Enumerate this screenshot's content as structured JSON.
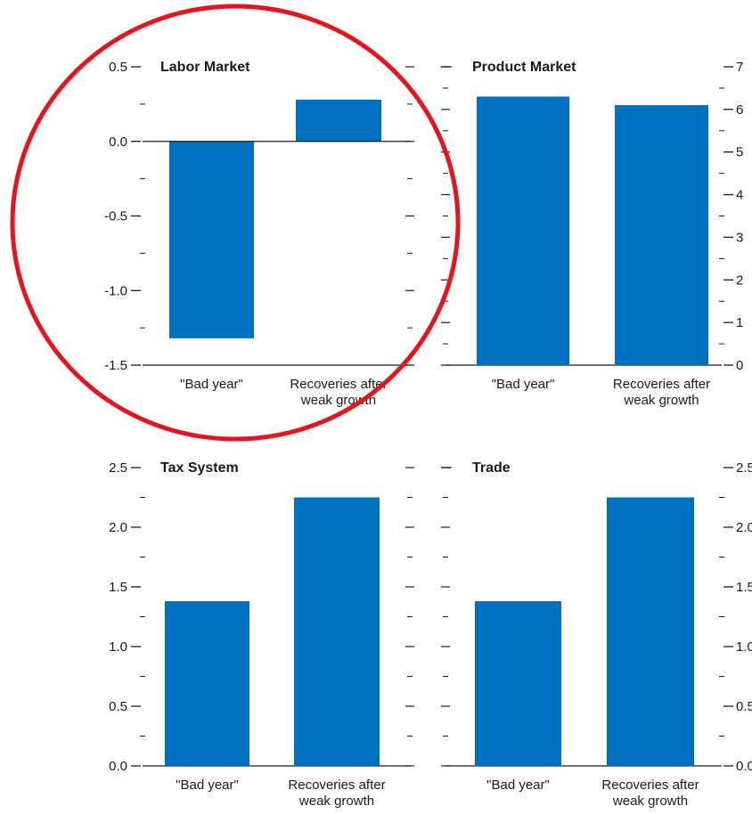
{
  "chart_data": [
    {
      "type": "bar",
      "title": "Labor Market",
      "categories": [
        "\"Bad year\"",
        "Recoveries after weak growth"
      ],
      "category_lines": [
        [
          "\"Bad year\""
        ],
        [
          "Recoveries after",
          "weak growth"
        ]
      ],
      "values": [
        -1.32,
        0.28
      ],
      "ylim": [
        -1.5,
        0.5
      ],
      "ticks": [
        -1.5,
        -1.0,
        -0.5,
        0.0,
        0.5
      ],
      "tick_labels": [
        "-1.5",
        "-1.0",
        "-0.5",
        "0.0",
        "0.5"
      ],
      "y_axis_side": "left",
      "baseline": 0
    },
    {
      "type": "bar",
      "title": "Product Market",
      "categories": [
        "\"Bad year\"",
        "Recoveries after weak growth"
      ],
      "category_lines": [
        [
          "\"Bad year\""
        ],
        [
          "Recoveries after",
          "weak growth"
        ]
      ],
      "values": [
        6.3,
        6.1
      ],
      "ylim": [
        0,
        7
      ],
      "ticks": [
        0,
        1,
        2,
        3,
        4,
        5,
        6,
        7
      ],
      "tick_labels": [
        "0",
        "1",
        "2",
        "3",
        "4",
        "5",
        "6",
        "7"
      ],
      "y_axis_side": "right",
      "baseline": 0
    },
    {
      "type": "bar",
      "title": "Tax System",
      "categories": [
        "\"Bad year\"",
        "Recoveries after weak growth"
      ],
      "category_lines": [
        [
          "\"Bad year\""
        ],
        [
          "Recoveries after",
          "weak growth"
        ]
      ],
      "values": [
        1.38,
        2.25
      ],
      "ylim": [
        0,
        2.5
      ],
      "ticks": [
        0.0,
        0.5,
        1.0,
        1.5,
        2.0,
        2.5
      ],
      "tick_labels": [
        "0.0",
        "0.5",
        "1.0",
        "1.5",
        "2.0",
        "2.5"
      ],
      "y_axis_side": "left",
      "baseline": 0
    },
    {
      "type": "bar",
      "title": "Trade",
      "categories": [
        "\"Bad year\"",
        "Recoveries after weak growth"
      ],
      "category_lines": [
        [
          "\"Bad year\""
        ],
        [
          "Recoveries after",
          "weak growth"
        ]
      ],
      "values": [
        1.38,
        2.25
      ],
      "ylim": [
        0,
        2.5
      ],
      "ticks": [
        0.0,
        0.5,
        1.0,
        1.5,
        2.0,
        2.5
      ],
      "tick_labels": [
        "0.0",
        "0.5",
        "1.0",
        "1.5",
        "2.0",
        "2.5"
      ],
      "y_axis_side": "right",
      "baseline": 0
    }
  ],
  "colors": {
    "bar": "#0070c0",
    "axis": "#1a1a1a",
    "highlight_circle": "#e8141c"
  },
  "annotation": {
    "type": "circle",
    "target_panel": "Labor Market"
  }
}
